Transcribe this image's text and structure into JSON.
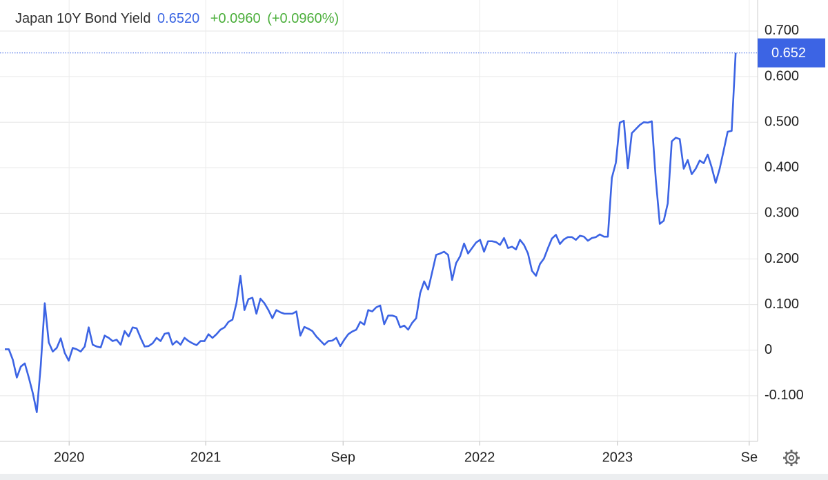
{
  "chart_data": {
    "type": "line",
    "title": "Japan 10Y Bond Yield",
    "last_value": "0.6520",
    "change": "+0.0960",
    "change_percent": "(+0.0960%)",
    "series": [
      {
        "name": "Japan 10Y Bond Yield",
        "color": "#3c64e4",
        "values": [
          0.002,
          0.002,
          -0.021,
          -0.06,
          -0.036,
          -0.029,
          -0.06,
          -0.094,
          -0.136,
          -0.033,
          0.103,
          0.017,
          -0.003,
          0.005,
          0.026,
          -0.006,
          -0.023,
          0.005,
          0.002,
          -0.003,
          0.008,
          0.05,
          0.012,
          0.008,
          0.006,
          0.032,
          0.027,
          0.02,
          0.023,
          0.012,
          0.042,
          0.03,
          0.05,
          0.048,
          0.027,
          0.008,
          0.009,
          0.015,
          0.027,
          0.02,
          0.036,
          0.038,
          0.012,
          0.02,
          0.012,
          0.027,
          0.02,
          0.015,
          0.011,
          0.02,
          0.02,
          0.035,
          0.027,
          0.035,
          0.045,
          0.05,
          0.062,
          0.067,
          0.103,
          0.163,
          0.088,
          0.112,
          0.115,
          0.08,
          0.113,
          0.103,
          0.088,
          0.07,
          0.088,
          0.083,
          0.08,
          0.08,
          0.08,
          0.085,
          0.032,
          0.051,
          0.047,
          0.042,
          0.03,
          0.021,
          0.012,
          0.02,
          0.021,
          0.027,
          0.009,
          0.023,
          0.035,
          0.041,
          0.045,
          0.062,
          0.056,
          0.088,
          0.085,
          0.094,
          0.098,
          0.057,
          0.076,
          0.076,
          0.073,
          0.05,
          0.054,
          0.045,
          0.06,
          0.07,
          0.125,
          0.151,
          0.133,
          0.171,
          0.209,
          0.212,
          0.216,
          0.209,
          0.154,
          0.191,
          0.206,
          0.234,
          0.212,
          0.224,
          0.236,
          0.242,
          0.216,
          0.239,
          0.239,
          0.237,
          0.231,
          0.246,
          0.224,
          0.227,
          0.221,
          0.242,
          0.231,
          0.212,
          0.174,
          0.163,
          0.189,
          0.201,
          0.224,
          0.245,
          0.253,
          0.233,
          0.243,
          0.248,
          0.248,
          0.242,
          0.251,
          0.249,
          0.24,
          0.246,
          0.248,
          0.254,
          0.249,
          0.249,
          0.378,
          0.411,
          0.499,
          0.503,
          0.399,
          0.476,
          0.485,
          0.494,
          0.5,
          0.499,
          0.502,
          0.375,
          0.277,
          0.284,
          0.322,
          0.458,
          0.466,
          0.463,
          0.398,
          0.417,
          0.386,
          0.398,
          0.416,
          0.41,
          0.429,
          0.401,
          0.367,
          0.398,
          0.438,
          0.479,
          0.481,
          0.652
        ]
      }
    ],
    "xlim": [
      -1.21,
      188.5
    ],
    "xticks": [
      {
        "value": 16.1,
        "label": "2020"
      },
      {
        "value": 50.3,
        "label": "2021"
      },
      {
        "value": 84.7,
        "label": "Sep"
      },
      {
        "value": 118.9,
        "label": "2022"
      },
      {
        "value": 153.4,
        "label": "2023"
      },
      {
        "value": 186.4,
        "label": "Se"
      }
    ],
    "ylim": [
      -0.2,
      0.768
    ],
    "yticks": [
      {
        "value": -0.1,
        "label": "-0.100"
      },
      0,
      {
        "value": 0.1,
        "label": "0.100"
      },
      {
        "value": 0.2,
        "label": "0.200"
      },
      {
        "value": 0.3,
        "label": "0.300"
      },
      {
        "value": 0.4,
        "label": "0.400"
      },
      {
        "value": 0.5,
        "label": "0.500"
      },
      {
        "value": 0.6,
        "label": "0.600"
      },
      {
        "value": 0.7,
        "label": "0.700"
      }
    ],
    "grid": true
  }
}
